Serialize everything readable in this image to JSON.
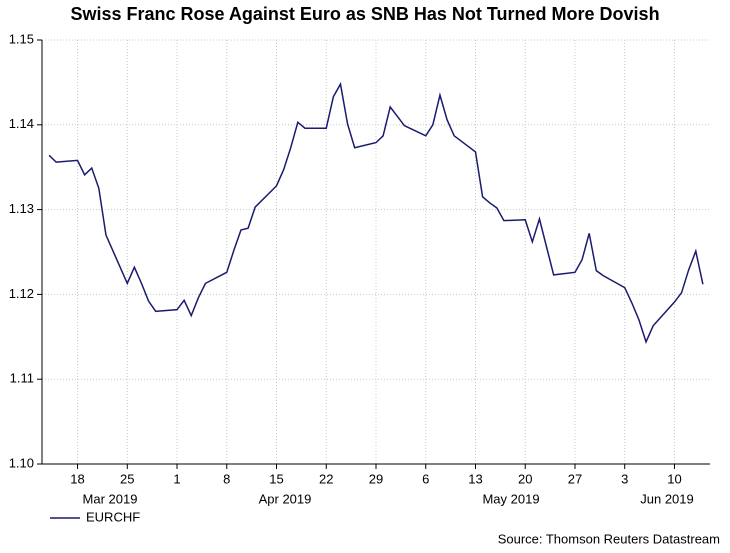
{
  "chart_data": {
    "type": "line",
    "title": "Swiss Franc Rose Against Euro as SNB Has Not Turned More Dovish",
    "source": "Source: Thomson Reuters Datastream",
    "x": [
      "2019-03-14",
      "2019-03-15",
      "2019-03-18",
      "2019-03-19",
      "2019-03-20",
      "2019-03-21",
      "2019-03-22",
      "2019-03-25",
      "2019-03-26",
      "2019-03-27",
      "2019-03-28",
      "2019-03-29",
      "2019-04-01",
      "2019-04-02",
      "2019-04-03",
      "2019-04-04",
      "2019-04-05",
      "2019-04-08",
      "2019-04-09",
      "2019-04-10",
      "2019-04-11",
      "2019-04-12",
      "2019-04-15",
      "2019-04-16",
      "2019-04-17",
      "2019-04-18",
      "2019-04-19",
      "2019-04-22",
      "2019-04-23",
      "2019-04-24",
      "2019-04-25",
      "2019-04-26",
      "2019-04-29",
      "2019-04-30",
      "2019-05-01",
      "2019-05-02",
      "2019-05-03",
      "2019-05-06",
      "2019-05-07",
      "2019-05-08",
      "2019-05-09",
      "2019-05-10",
      "2019-05-13",
      "2019-05-14",
      "2019-05-15",
      "2019-05-16",
      "2019-05-17",
      "2019-05-20",
      "2019-05-21",
      "2019-05-22",
      "2019-05-23",
      "2019-05-24",
      "2019-05-27",
      "2019-05-28",
      "2019-05-29",
      "2019-05-30",
      "2019-05-31",
      "2019-06-03",
      "2019-06-04",
      "2019-06-05",
      "2019-06-06",
      "2019-06-07",
      "2019-06-10",
      "2019-06-11",
      "2019-06-12",
      "2019-06-13",
      "2019-06-14"
    ],
    "series": [
      {
        "name": "EURCHF",
        "color": "#1a1a6e",
        "values": [
          1.1364,
          1.1356,
          1.1358,
          1.1341,
          1.1349,
          1.1325,
          1.127,
          1.1213,
          1.1232,
          1.1213,
          1.1192,
          1.118,
          1.1182,
          1.1193,
          1.1175,
          1.1196,
          1.1213,
          1.1226,
          1.1252,
          1.1276,
          1.1278,
          1.1303,
          1.1328,
          1.1347,
          1.1373,
          1.1403,
          1.1396,
          1.1396,
          1.1433,
          1.1448,
          1.1401,
          1.1373,
          1.1379,
          1.1387,
          1.1421,
          1.141,
          1.1399,
          1.1387,
          1.14,
          1.1435,
          1.1406,
          1.1387,
          1.1368,
          1.1315,
          1.1308,
          1.1302,
          1.1287,
          1.1288,
          1.1262,
          1.1289,
          1.1256,
          1.1223,
          1.1226,
          1.1241,
          1.1272,
          1.1228,
          1.1222,
          1.1208,
          1.119,
          1.117,
          1.1144,
          1.1163,
          1.1191,
          1.1202,
          1.1229,
          1.1251,
          1.1212
        ]
      }
    ],
    "xlim": [
      "2019-03-13",
      "2019-06-15"
    ],
    "xticks": [
      {
        "value": "2019-03-18",
        "label": "18"
      },
      {
        "value": "2019-03-25",
        "label": "25"
      },
      {
        "value": "2019-04-01",
        "label": "1"
      },
      {
        "value": "2019-04-08",
        "label": "8"
      },
      {
        "value": "2019-04-15",
        "label": "15"
      },
      {
        "value": "2019-04-22",
        "label": "22"
      },
      {
        "value": "2019-04-29",
        "label": "29"
      },
      {
        "value": "2019-05-06",
        "label": "6"
      },
      {
        "value": "2019-05-13",
        "label": "13"
      },
      {
        "value": "2019-05-20",
        "label": "20"
      },
      {
        "value": "2019-05-27",
        "label": "27"
      },
      {
        "value": "2019-06-03",
        "label": "3"
      },
      {
        "value": "2019-06-10",
        "label": "10"
      }
    ],
    "month_labels": [
      "Mar 2019",
      "Apr 2019",
      "May 2019",
      "Jun 2019"
    ],
    "ylim": [
      1.1,
      1.15
    ],
    "yticks": [
      {
        "value": 1.1,
        "label": "1.10"
      },
      1.11,
      1.12,
      1.13,
      1.14,
      {
        "value": 1.15,
        "label": "1.15"
      }
    ],
    "grid": true
  }
}
